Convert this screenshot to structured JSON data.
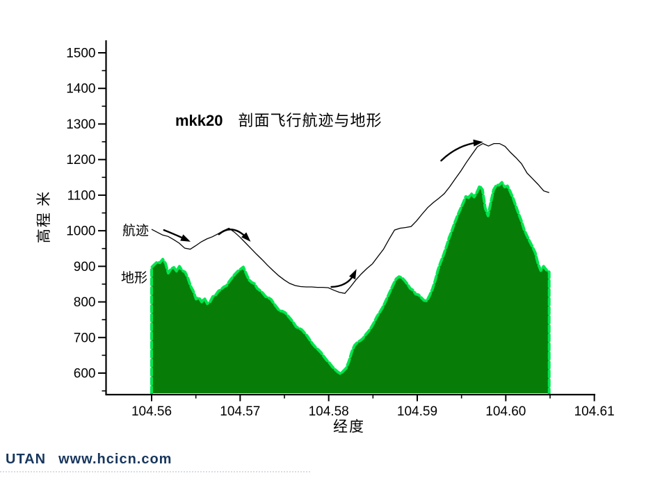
{
  "page": {
    "background": "#ffffff"
  },
  "title": {
    "code": "mkk20",
    "text": "剖面飞行航迹与地形"
  },
  "series_labels": {
    "flight_path": "航迹",
    "terrain": "地形"
  },
  "footer": {
    "brand": "UTAN",
    "url": "www.hcicn.com",
    "color": "#17365d"
  },
  "colors": {
    "terrain_fill": "#077d07",
    "terrain_edge": "#00e64f",
    "flight_path": "#000000",
    "axis": "#000000"
  },
  "chart_data": {
    "type": "area",
    "title": "mkk20 剖面飞行航迹与地形",
    "xlabel": "经度",
    "ylabel": "高程 米",
    "grid": false,
    "x_axis": {
      "range": [
        104.5548,
        104.611
      ],
      "major_tick_values": [
        104.56,
        104.57,
        104.58,
        104.59,
        104.6,
        104.61
      ],
      "major_tick_labels": [
        "104.56",
        "104.57",
        "104.58",
        "104.59",
        "104.60",
        "104.61"
      ],
      "minor_tick_values": [
        104.565,
        104.575,
        104.585,
        104.595,
        104.605
      ]
    },
    "y_axis": {
      "range": [
        547,
        1536
      ],
      "major_tick_values": [
        600,
        700,
        800,
        900,
        1000,
        1100,
        1200,
        1300,
        1400,
        1500
      ],
      "major_tick_labels": [
        "600",
        "700",
        "800",
        "900",
        "1000",
        "1100",
        "1200",
        "1300",
        "1400",
        "1500"
      ],
      "minor_tick_values": [
        550,
        650,
        750,
        850,
        950,
        1050,
        1150,
        1250,
        1350,
        1450
      ]
    },
    "series": [
      {
        "name": "地形",
        "type": "area",
        "fill": "#077d07",
        "edge": "#00e64f",
        "lon_start": 104.56,
        "lon_end": 104.6049,
        "elevations": [
          897,
          905,
          912,
          910,
          920,
          908,
          881,
          893,
          897,
          886,
          900,
          888,
          884,
          868,
          845,
          830,
          808,
          812,
          800,
          810,
          795,
          800,
          815,
          819,
          830,
          835,
          842,
          846,
          858,
          868,
          878,
          886,
          892,
          898,
          880,
          862,
          855,
          851,
          838,
          832,
          825,
          815,
          812,
          807,
          795,
          785,
          775,
          774,
          770,
          761,
          752,
          742,
          730,
          726,
          722,
          713,
          704,
          692,
          681,
          672,
          665,
          657,
          646,
          636,
          628,
          618,
          610,
          603,
          598,
          606,
          614,
          634,
          660,
          678,
          686,
          691,
          697,
          708,
          717,
          728,
          742,
          758,
          770,
          783,
          799,
          816,
          833,
          850,
          865,
          871,
          868,
          860,
          850,
          838,
          833,
          822,
          820,
          812,
          804,
          803,
          818,
          836,
          860,
          890,
          912,
          932,
          955,
          980,
          1000,
          1022,
          1042,
          1060,
          1077,
          1096,
          1093,
          1104,
          1095,
          1108,
          1126,
          1115,
          1063,
          1042,
          1080,
          1115,
          1128,
          1128,
          1136,
          1123,
          1126,
          1110,
          1092,
          1070,
          1048,
          1028,
          1003,
          986,
          970,
          955,
          938,
          907,
          888,
          900,
          890,
          884
        ]
      },
      {
        "name": "航迹",
        "type": "line",
        "color": "#000000",
        "lon_start": 104.56,
        "lon_end": 104.6049,
        "elevations": [
          1004,
          996,
          988,
          984,
          975,
          965,
          951,
          948,
          958,
          969,
          977,
          983,
          991,
          1000,
          1007,
          996,
          982,
          966,
          950,
          934,
          919,
          903,
          888,
          874,
          862,
          852,
          846,
          843,
          842,
          842,
          841,
          841,
          840,
          833,
          827,
          824,
          842,
          862,
          879,
          894,
          907,
          928,
          948,
          976,
          1002,
          1007,
          1009,
          1012,
          1028,
          1047,
          1065,
          1079,
          1091,
          1104,
          1124,
          1146,
          1168,
          1192,
          1214,
          1236,
          1245,
          1238,
          1245,
          1245,
          1237,
          1220,
          1205,
          1188,
          1162,
          1146,
          1130,
          1112,
          1107
        ]
      }
    ],
    "arrows": [
      {
        "tail": [
          104.5614,
          1002
        ],
        "ctrl": [
          104.5627,
          989
        ],
        "head": [
          104.5639,
          975
        ]
      },
      {
        "tail": [
          104.5676,
          990
        ],
        "ctrl": [
          104.5691,
          1022
        ],
        "head": [
          104.5708,
          979
        ]
      },
      {
        "tail": [
          104.5803,
          842
        ],
        "ctrl": [
          104.5822,
          844
        ],
        "head": [
          104.5829,
          880
        ]
      },
      {
        "tail": [
          104.5927,
          1197
        ],
        "ctrl": [
          104.5946,
          1242
        ],
        "head": [
          104.5969,
          1248
        ]
      }
    ]
  }
}
